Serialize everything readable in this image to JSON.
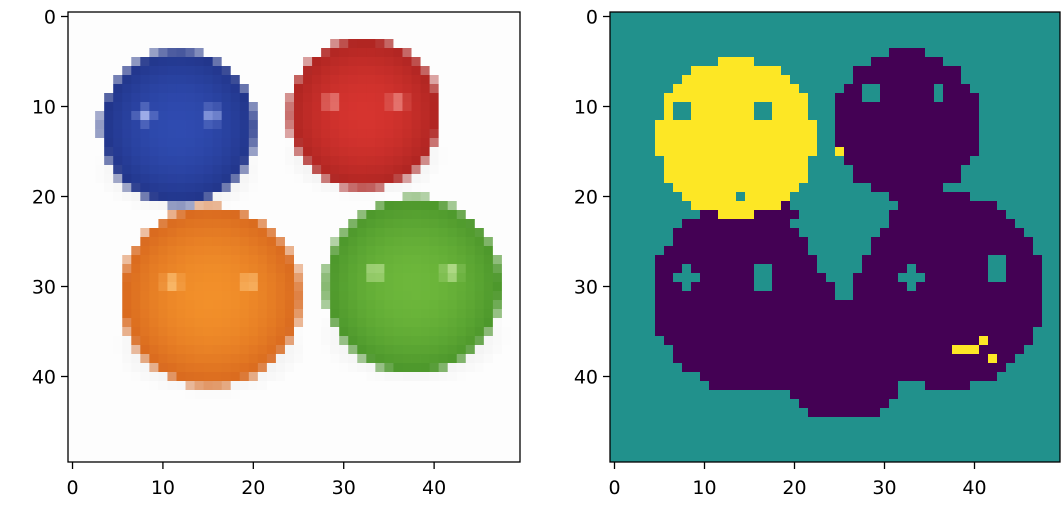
{
  "chart_data": [
    {
      "type": "image",
      "title": "",
      "xlabel": "",
      "ylabel": "",
      "shape": [
        50,
        50
      ],
      "x_ticks": [
        0,
        10,
        20,
        30,
        40
      ],
      "y_ticks": [
        0,
        10,
        20,
        30,
        40
      ],
      "x_tick_labels": [
        "0",
        "10",
        "20",
        "30",
        "40"
      ],
      "y_tick_labels": [
        "0",
        "10",
        "20",
        "30",
        "40"
      ],
      "background": "#fdfdfd",
      "shadow": "#dcdcdc",
      "spheres": [
        {
          "name": "blue",
          "cx": 12.2,
          "cy": 12.8,
          "r": 8.8,
          "color": "#2f4bb0",
          "shade": "#1c2c7a",
          "highlight": "#aab8f0"
        },
        {
          "name": "red",
          "cx": 32.8,
          "cy": 11.3,
          "r": 8.6,
          "color": "#d6342f",
          "shade": "#9e1f1c",
          "highlight": "#f4a09a"
        },
        {
          "name": "orange",
          "cx": 15.8,
          "cy": 31.6,
          "r": 10.2,
          "color": "#f2902a",
          "shade": "#cf5a1a",
          "highlight": "#ffd08a"
        },
        {
          "name": "green",
          "cx": 38.2,
          "cy": 30.4,
          "r": 10.0,
          "color": "#6db73b",
          "shade": "#3f8a25",
          "highlight": "#d6f0b0"
        }
      ]
    },
    {
      "type": "heatmap",
      "title": "",
      "xlabel": "",
      "ylabel": "",
      "shape": [
        50,
        50
      ],
      "x_ticks": [
        0,
        10,
        20,
        30,
        40
      ],
      "y_ticks": [
        0,
        10,
        20,
        30,
        40
      ],
      "x_tick_labels": [
        "0",
        "10",
        "20",
        "30",
        "40"
      ],
      "y_tick_labels": [
        "0",
        "10",
        "20",
        "30",
        "40"
      ],
      "colormap": "viridis",
      "classes": {
        "0": "#440154",
        "1": "#21918c",
        "2": "#fde725"
      },
      "background_class": 1,
      "regions": [
        {
          "label": 2,
          "cx": 14.0,
          "cy": 14.0,
          "r": 8.8
        },
        {
          "label": 0,
          "cx": 33.0,
          "cy": 12.5,
          "r": 8.2
        },
        {
          "label": 0,
          "cx": 15.5,
          "cy": 31.5,
          "r": 10.8
        },
        {
          "label": 0,
          "cx": 37.5,
          "cy": 31.0,
          "r": 10.8
        },
        {
          "label": 0,
          "cx": 26.0,
          "cy": 38.5,
          "r": 7.0
        }
      ],
      "holes": [
        {
          "label": 1,
          "cx": 8.0,
          "cy": 11.0,
          "r": 1.2
        },
        {
          "label": 1,
          "cx": 17.0,
          "cy": 11.0,
          "r": 1.1
        },
        {
          "label": 1,
          "cx": 29.0,
          "cy": 9.0,
          "r": 0.8
        },
        {
          "label": 1,
          "cx": 36.5,
          "cy": 9.0,
          "r": 0.8
        },
        {
          "label": 1,
          "cx": 8.5,
          "cy": 29.5,
          "r": 1.2
        },
        {
          "label": 1,
          "cx": 17.0,
          "cy": 29.5,
          "r": 1.2
        },
        {
          "label": 1,
          "cx": 33.5,
          "cy": 29.5,
          "r": 1.0
        },
        {
          "label": 1,
          "cx": 43.0,
          "cy": 28.5,
          "r": 1.3
        }
      ],
      "background_wedge": [
        [
          20,
          23
        ],
        [
          31,
          23
        ],
        [
          25.5,
          32
        ]
      ],
      "spots": [
        {
          "label": 2,
          "x": 25,
          "y": 15
        },
        {
          "label": 2,
          "x": 38,
          "y": 37
        },
        {
          "label": 2,
          "x": 39,
          "y": 37
        },
        {
          "label": 2,
          "x": 40,
          "y": 37
        },
        {
          "label": 2,
          "x": 41,
          "y": 36
        },
        {
          "label": 2,
          "x": 42,
          "y": 38
        },
        {
          "label": 1,
          "x": 14,
          "y": 20
        }
      ]
    }
  ]
}
